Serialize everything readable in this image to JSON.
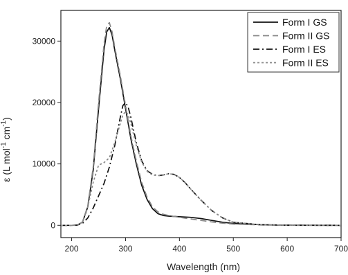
{
  "chart_data": {
    "type": "line",
    "title": "",
    "xlabel": "Wavelength (nm)",
    "ylabel_parts": [
      "ε (L mol",
      "-1",
      " cm",
      "-1",
      ")"
    ],
    "xlim": [
      180,
      700
    ],
    "ylim": [
      -2000,
      35000
    ],
    "x_ticks": [
      200,
      300,
      400,
      500,
      600,
      700
    ],
    "y_ticks": [
      0,
      10000,
      20000,
      30000
    ],
    "legend_position": "top-right",
    "series": [
      {
        "name": "Form I GS",
        "color": "#111111",
        "style": "solid",
        "points": [
          [
            180,
            0
          ],
          [
            200,
            0
          ],
          [
            210,
            30
          ],
          [
            220,
            500
          ],
          [
            230,
            3000
          ],
          [
            240,
            9000
          ],
          [
            250,
            19000
          ],
          [
            260,
            28500
          ],
          [
            265,
            31500
          ],
          [
            270,
            32200
          ],
          [
            275,
            31000
          ],
          [
            280,
            28500
          ],
          [
            290,
            24000
          ],
          [
            300,
            19000
          ],
          [
            310,
            14000
          ],
          [
            320,
            10000
          ],
          [
            330,
            6500
          ],
          [
            340,
            4200
          ],
          [
            350,
            2700
          ],
          [
            360,
            1900
          ],
          [
            370,
            1600
          ],
          [
            380,
            1500
          ],
          [
            400,
            1400
          ],
          [
            420,
            1300
          ],
          [
            440,
            1100
          ],
          [
            460,
            800
          ],
          [
            480,
            500
          ],
          [
            500,
            300
          ],
          [
            550,
            100
          ],
          [
            600,
            20
          ],
          [
            700,
            0
          ]
        ]
      },
      {
        "name": "Form II GS",
        "color": "#888888",
        "style": "dash",
        "points": [
          [
            180,
            0
          ],
          [
            200,
            0
          ],
          [
            210,
            30
          ],
          [
            220,
            500
          ],
          [
            230,
            3200
          ],
          [
            240,
            9500
          ],
          [
            250,
            20000
          ],
          [
            260,
            29500
          ],
          [
            265,
            32500
          ],
          [
            270,
            33000
          ],
          [
            275,
            31500
          ],
          [
            280,
            29000
          ],
          [
            290,
            24500
          ],
          [
            300,
            19500
          ],
          [
            310,
            14500
          ],
          [
            320,
            10500
          ],
          [
            330,
            7000
          ],
          [
            340,
            4600
          ],
          [
            350,
            3000
          ],
          [
            360,
            2200
          ],
          [
            370,
            1800
          ],
          [
            380,
            1600
          ],
          [
            400,
            1300
          ],
          [
            420,
            1050
          ],
          [
            440,
            800
          ],
          [
            460,
            550
          ],
          [
            480,
            350
          ],
          [
            500,
            200
          ],
          [
            550,
            60
          ],
          [
            600,
            10
          ],
          [
            700,
            0
          ]
        ]
      },
      {
        "name": "Form I ES",
        "color": "#111111",
        "style": "dashdot",
        "points": [
          [
            180,
            0
          ],
          [
            200,
            0
          ],
          [
            210,
            30
          ],
          [
            220,
            300
          ],
          [
            230,
            1200
          ],
          [
            240,
            2800
          ],
          [
            250,
            4800
          ],
          [
            260,
            6800
          ],
          [
            270,
            9500
          ],
          [
            280,
            13000
          ],
          [
            290,
            17500
          ],
          [
            295,
            19500
          ],
          [
            300,
            20000
          ],
          [
            305,
            19200
          ],
          [
            310,
            17500
          ],
          [
            320,
            13500
          ],
          [
            330,
            10500
          ],
          [
            340,
            8900
          ],
          [
            350,
            8300
          ],
          [
            360,
            8100
          ],
          [
            370,
            8200
          ],
          [
            380,
            8400
          ],
          [
            390,
            8300
          ],
          [
            400,
            7800
          ],
          [
            410,
            7000
          ],
          [
            420,
            6000
          ],
          [
            440,
            4100
          ],
          [
            460,
            2400
          ],
          [
            480,
            1200
          ],
          [
            500,
            500
          ],
          [
            550,
            100
          ],
          [
            600,
            20
          ],
          [
            700,
            0
          ]
        ]
      },
      {
        "name": "Form II ES",
        "color": "#888888",
        "style": "dot",
        "points": [
          [
            180,
            0
          ],
          [
            200,
            0
          ],
          [
            210,
            30
          ],
          [
            220,
            500
          ],
          [
            230,
            3000
          ],
          [
            240,
            7000
          ],
          [
            250,
            9800
          ],
          [
            260,
            10200
          ],
          [
            270,
            11000
          ],
          [
            280,
            13500
          ],
          [
            290,
            16500
          ],
          [
            295,
            18000
          ],
          [
            300,
            18500
          ],
          [
            305,
            18000
          ],
          [
            310,
            16500
          ],
          [
            320,
            13000
          ],
          [
            330,
            10300
          ],
          [
            340,
            8800
          ],
          [
            350,
            8200
          ],
          [
            360,
            8100
          ],
          [
            370,
            8200
          ],
          [
            380,
            8400
          ],
          [
            390,
            8300
          ],
          [
            400,
            7800
          ],
          [
            410,
            7000
          ],
          [
            420,
            6000
          ],
          [
            440,
            4100
          ],
          [
            460,
            2400
          ],
          [
            480,
            1200
          ],
          [
            500,
            500
          ],
          [
            550,
            100
          ],
          [
            600,
            20
          ],
          [
            700,
            0
          ]
        ]
      }
    ]
  }
}
